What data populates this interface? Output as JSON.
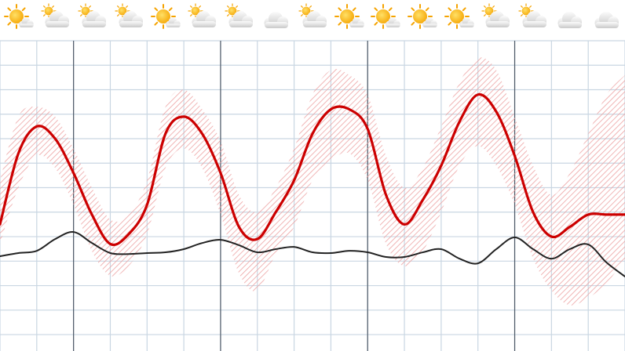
{
  "chart_data": {
    "type": "line",
    "x": [
      0,
      3,
      6,
      9,
      12,
      15,
      18,
      21,
      24,
      27,
      30,
      33,
      36,
      39,
      42,
      45,
      48,
      51,
      54,
      57,
      60,
      63,
      66,
      69,
      72,
      75,
      78,
      81,
      84,
      87,
      90,
      93,
      96,
      99,
      102
    ],
    "series": [
      {
        "color": "#cc0000",
        "values": [
          4.5,
          7.4,
          8.5,
          8.0,
          6.6,
          4.9,
          3.7,
          4.1,
          5.3,
          8.2,
          8.9,
          8.2,
          6.6,
          4.4,
          3.9,
          5.0,
          6.3,
          8.2,
          9.2,
          9.2,
          8.4,
          5.7,
          4.5,
          5.5,
          6.9,
          8.7,
          9.8,
          9.1,
          7.3,
          5.0,
          4.0,
          4.4,
          4.9,
          4.9,
          4.9
        ]
      },
      {
        "color": "#222222",
        "values": [
          3.2,
          3.33,
          3.42,
          3.9,
          4.19,
          3.74,
          3.33,
          3.29,
          3.33,
          3.36,
          3.49,
          3.74,
          3.87,
          3.65,
          3.36,
          3.49,
          3.58,
          3.36,
          3.33,
          3.42,
          3.36,
          3.17,
          3.17,
          3.36,
          3.49,
          3.1,
          2.91,
          3.49,
          3.97,
          3.49,
          3.1,
          3.49,
          3.68,
          2.94,
          2.37
        ]
      }
    ],
    "band": {
      "color": "#eda3a3",
      "high": [
        6.3,
        8.9,
        9.3,
        8.9,
        7.6,
        6.0,
        4.7,
        4.9,
        6.3,
        9.3,
        10.0,
        9.2,
        7.9,
        5.7,
        5.0,
        6.0,
        7.6,
        9.8,
        10.8,
        10.6,
        9.8,
        7.3,
        6.0,
        6.8,
        8.5,
        10.3,
        11.3,
        10.8,
        8.9,
        6.9,
        5.7,
        6.6,
        8.2,
        9.8,
        10.6
      ],
      "low": [
        3.7,
        6.0,
        7.3,
        6.8,
        5.3,
        3.4,
        2.4,
        2.8,
        4.1,
        6.8,
        7.6,
        6.8,
        4.9,
        2.5,
        1.8,
        3.3,
        4.4,
        6.3,
        7.1,
        7.4,
        6.3,
        3.7,
        2.8,
        3.4,
        5.0,
        6.9,
        7.7,
        6.9,
        5.3,
        3.1,
        1.8,
        1.2,
        1.5,
        2.1,
        3.1
      ]
    },
    "xlim": [
      0,
      102
    ],
    "ylim": [
      -0.67,
      12
    ],
    "xticks": [
      0,
      6,
      12,
      18,
      24,
      30,
      36,
      42,
      48,
      54,
      60,
      66,
      72,
      78,
      84,
      90,
      96,
      102
    ],
    "major_xticks": [
      12,
      36,
      60,
      84
    ],
    "yticks": [
      0,
      1,
      2,
      3,
      4,
      5,
      6,
      7,
      8,
      9,
      10,
      11,
      12
    ],
    "grid": true,
    "grid_color": "#c9d6e2",
    "major_grid_color": "#4d5866"
  }
}
